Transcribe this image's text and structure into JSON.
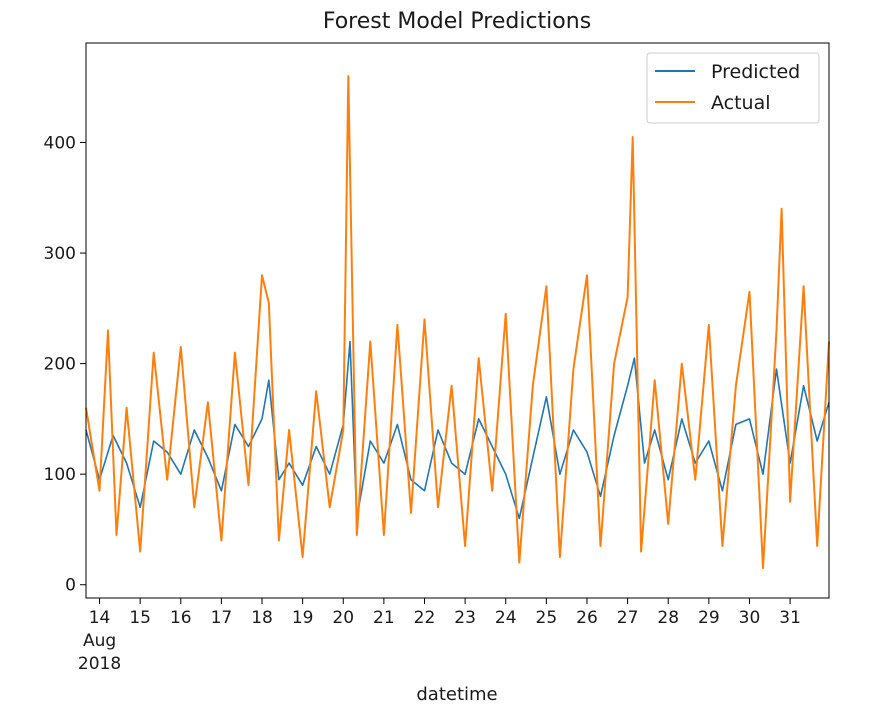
{
  "chart_data": {
    "type": "line",
    "title": "Forest Model Predictions",
    "xlabel": "datetime",
    "ylabel": "",
    "xlim": [
      "2018-08-13T16:00",
      "2018-08-31T23:00"
    ],
    "ylim": [
      -12,
      490
    ],
    "x_ticks": [
      "14",
      "15",
      "16",
      "17",
      "18",
      "19",
      "20",
      "21",
      "22",
      "23",
      "24",
      "25",
      "26",
      "27",
      "28",
      "29",
      "30",
      "31"
    ],
    "x_tick_dates": [
      "2018-08-14",
      "2018-08-15",
      "2018-08-16",
      "2018-08-17",
      "2018-08-18",
      "2018-08-19",
      "2018-08-20",
      "2018-08-21",
      "2018-08-22",
      "2018-08-23",
      "2018-08-24",
      "2018-08-25",
      "2018-08-26",
      "2018-08-27",
      "2018-08-28",
      "2018-08-29",
      "2018-08-30",
      "2018-08-31"
    ],
    "x_first_tick_extra": [
      "Aug",
      "2018"
    ],
    "y_ticks": [
      0,
      100,
      200,
      300,
      400
    ],
    "grid": false,
    "legend_position": "top-right",
    "series": [
      {
        "name": "Predicted",
        "color": "#1f77b4",
        "points": [
          [
            "2018-08-13T16:00",
            140
          ],
          [
            "2018-08-14T00:00",
            95
          ],
          [
            "2018-08-14T08:00",
            135
          ],
          [
            "2018-08-14T16:00",
            110
          ],
          [
            "2018-08-15T00:00",
            70
          ],
          [
            "2018-08-15T08:00",
            130
          ],
          [
            "2018-08-15T16:00",
            120
          ],
          [
            "2018-08-16T00:00",
            100
          ],
          [
            "2018-08-16T08:00",
            140
          ],
          [
            "2018-08-16T16:00",
            115
          ],
          [
            "2018-08-17T00:00",
            85
          ],
          [
            "2018-08-17T08:00",
            145
          ],
          [
            "2018-08-17T16:00",
            125
          ],
          [
            "2018-08-18T00:00",
            150
          ],
          [
            "2018-08-18T04:00",
            185
          ],
          [
            "2018-08-18T10:00",
            95
          ],
          [
            "2018-08-18T16:00",
            110
          ],
          [
            "2018-08-19T00:00",
            90
          ],
          [
            "2018-08-19T08:00",
            125
          ],
          [
            "2018-08-19T16:00",
            100
          ],
          [
            "2018-08-20T00:00",
            145
          ],
          [
            "2018-08-20T04:00",
            220
          ],
          [
            "2018-08-20T08:00",
            60
          ],
          [
            "2018-08-20T16:00",
            130
          ],
          [
            "2018-08-21T00:00",
            110
          ],
          [
            "2018-08-21T08:00",
            145
          ],
          [
            "2018-08-21T16:00",
            95
          ],
          [
            "2018-08-22T00:00",
            85
          ],
          [
            "2018-08-22T08:00",
            140
          ],
          [
            "2018-08-22T16:00",
            110
          ],
          [
            "2018-08-23T00:00",
            100
          ],
          [
            "2018-08-23T08:00",
            150
          ],
          [
            "2018-08-23T16:00",
            125
          ],
          [
            "2018-08-24T00:00",
            100
          ],
          [
            "2018-08-24T08:00",
            60
          ],
          [
            "2018-08-24T16:00",
            115
          ],
          [
            "2018-08-25T00:00",
            170
          ],
          [
            "2018-08-25T08:00",
            100
          ],
          [
            "2018-08-25T16:00",
            140
          ],
          [
            "2018-08-26T00:00",
            120
          ],
          [
            "2018-08-26T08:00",
            80
          ],
          [
            "2018-08-26T16:00",
            135
          ],
          [
            "2018-08-27T00:00",
            180
          ],
          [
            "2018-08-27T04:00",
            205
          ],
          [
            "2018-08-27T10:00",
            110
          ],
          [
            "2018-08-27T16:00",
            140
          ],
          [
            "2018-08-28T00:00",
            95
          ],
          [
            "2018-08-28T08:00",
            150
          ],
          [
            "2018-08-28T16:00",
            110
          ],
          [
            "2018-08-29T00:00",
            130
          ],
          [
            "2018-08-29T08:00",
            85
          ],
          [
            "2018-08-29T16:00",
            145
          ],
          [
            "2018-08-30T00:00",
            150
          ],
          [
            "2018-08-30T08:00",
            100
          ],
          [
            "2018-08-30T16:00",
            195
          ],
          [
            "2018-08-31T00:00",
            110
          ],
          [
            "2018-08-31T08:00",
            180
          ],
          [
            "2018-08-31T16:00",
            130
          ],
          [
            "2018-08-31T23:00",
            165
          ]
        ]
      },
      {
        "name": "Actual",
        "color": "#ff7f0e",
        "points": [
          [
            "2018-08-13T16:00",
            160
          ],
          [
            "2018-08-14T00:00",
            85
          ],
          [
            "2018-08-14T05:00",
            230
          ],
          [
            "2018-08-14T10:00",
            45
          ],
          [
            "2018-08-14T16:00",
            160
          ],
          [
            "2018-08-15T00:00",
            30
          ],
          [
            "2018-08-15T08:00",
            210
          ],
          [
            "2018-08-15T16:00",
            95
          ],
          [
            "2018-08-16T00:00",
            215
          ],
          [
            "2018-08-16T08:00",
            70
          ],
          [
            "2018-08-16T16:00",
            165
          ],
          [
            "2018-08-17T00:00",
            40
          ],
          [
            "2018-08-17T08:00",
            210
          ],
          [
            "2018-08-17T16:00",
            90
          ],
          [
            "2018-08-18T00:00",
            280
          ],
          [
            "2018-08-18T04:00",
            255
          ],
          [
            "2018-08-18T10:00",
            40
          ],
          [
            "2018-08-18T16:00",
            140
          ],
          [
            "2018-08-19T00:00",
            25
          ],
          [
            "2018-08-19T08:00",
            175
          ],
          [
            "2018-08-19T16:00",
            70
          ],
          [
            "2018-08-20T00:00",
            140
          ],
          [
            "2018-08-20T03:00",
            460
          ],
          [
            "2018-08-20T08:00",
            45
          ],
          [
            "2018-08-20T16:00",
            220
          ],
          [
            "2018-08-21T00:00",
            45
          ],
          [
            "2018-08-21T08:00",
            235
          ],
          [
            "2018-08-21T16:00",
            65
          ],
          [
            "2018-08-22T00:00",
            240
          ],
          [
            "2018-08-22T08:00",
            70
          ],
          [
            "2018-08-22T16:00",
            180
          ],
          [
            "2018-08-23T00:00",
            35
          ],
          [
            "2018-08-23T08:00",
            205
          ],
          [
            "2018-08-23T16:00",
            85
          ],
          [
            "2018-08-24T00:00",
            245
          ],
          [
            "2018-08-24T08:00",
            20
          ],
          [
            "2018-08-24T16:00",
            180
          ],
          [
            "2018-08-25T00:00",
            270
          ],
          [
            "2018-08-25T08:00",
            25
          ],
          [
            "2018-08-25T16:00",
            195
          ],
          [
            "2018-08-26T00:00",
            280
          ],
          [
            "2018-08-26T08:00",
            35
          ],
          [
            "2018-08-26T16:00",
            200
          ],
          [
            "2018-08-27T00:00",
            260
          ],
          [
            "2018-08-27T03:00",
            405
          ],
          [
            "2018-08-27T08:00",
            30
          ],
          [
            "2018-08-27T16:00",
            185
          ],
          [
            "2018-08-28T00:00",
            55
          ],
          [
            "2018-08-28T08:00",
            200
          ],
          [
            "2018-08-28T16:00",
            95
          ],
          [
            "2018-08-29T00:00",
            235
          ],
          [
            "2018-08-29T08:00",
            35
          ],
          [
            "2018-08-29T16:00",
            180
          ],
          [
            "2018-08-30T00:00",
            265
          ],
          [
            "2018-08-30T08:00",
            15
          ],
          [
            "2018-08-30T16:00",
            230
          ],
          [
            "2018-08-30T19:00",
            340
          ],
          [
            "2018-08-31T00:00",
            75
          ],
          [
            "2018-08-31T08:00",
            270
          ],
          [
            "2018-08-31T16:00",
            35
          ],
          [
            "2018-08-31T23:00",
            220
          ]
        ]
      }
    ]
  }
}
